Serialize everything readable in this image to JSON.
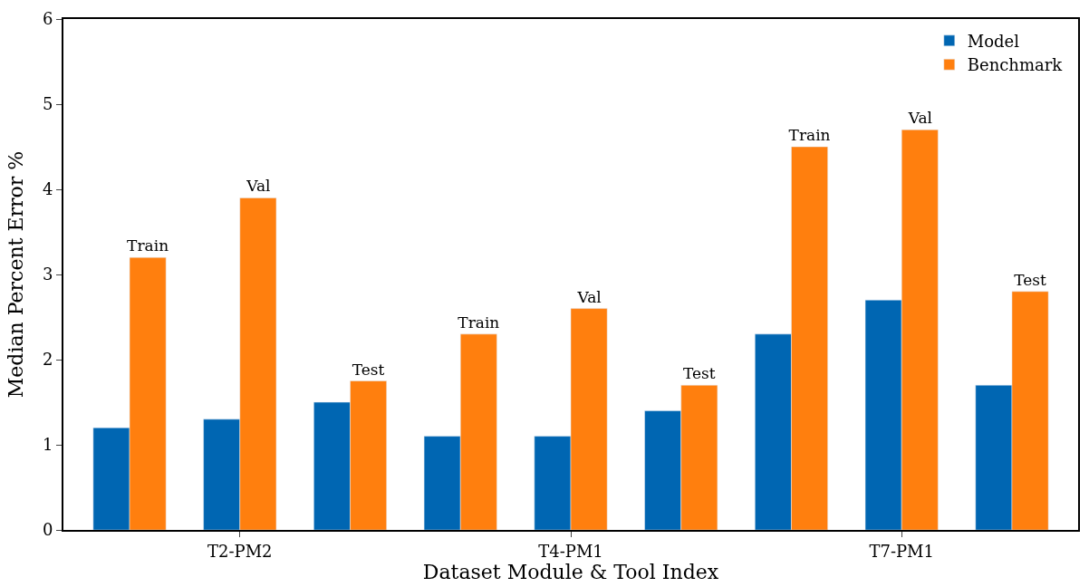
{
  "chart_data": {
    "type": "bar",
    "xlabel": "Dataset Module & Tool Index",
    "ylabel": "Median Percent Error %",
    "categories": [
      null,
      "T2-PM2",
      null,
      null,
      "T4-PM1",
      null,
      null,
      "T7-PM1",
      null
    ],
    "series": [
      {
        "name": "Model",
        "color": "#0066b2",
        "values": [
          1.2,
          1.3,
          1.5,
          1.1,
          1.1,
          1.4,
          2.3,
          2.7,
          1.7
        ]
      },
      {
        "name": "Benchmark",
        "color": "#ff7f0e",
        "values": [
          3.2,
          3.9,
          1.75,
          2.3,
          2.6,
          1.7,
          4.5,
          4.7,
          2.8
        ],
        "value_labels": [
          "Train",
          "Val",
          "Test",
          "Train",
          "Val",
          "Test",
          "Train",
          "Val",
          "Test"
        ]
      }
    ],
    "ylim": [
      0,
      6
    ],
    "yticks": [
      0,
      1,
      2,
      3,
      4,
      5,
      6
    ],
    "legend": "top right"
  }
}
